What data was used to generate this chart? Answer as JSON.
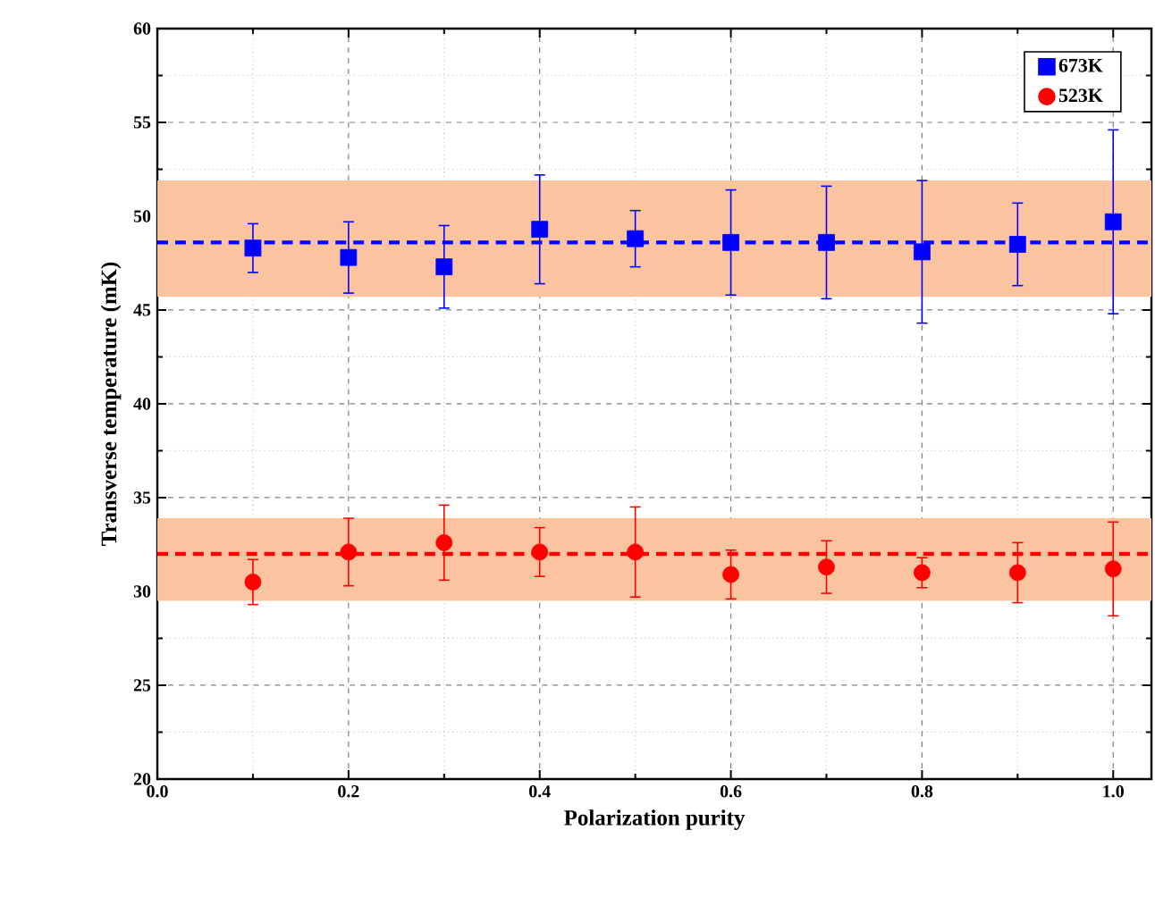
{
  "chart_data": {
    "type": "scatter",
    "xlabel": "Polarization purity",
    "ylabel": "Transverse temperature (mK)",
    "xlim": [
      0,
      1.04
    ],
    "xticks": [
      {
        "value": 0,
        "label": "0.0"
      },
      0.2,
      0.4,
      0.6,
      0.8,
      {
        "value": 1,
        "label": "1.0"
      }
    ],
    "ylim": [
      20,
      60
    ],
    "yticks": [
      20,
      25,
      30,
      35,
      40,
      45,
      50,
      55,
      60
    ],
    "x": [
      0.1,
      0.2,
      0.3,
      0.4,
      0.5,
      0.6,
      0.7,
      0.8,
      0.9,
      1.0
    ],
    "series": [
      {
        "name": "673K",
        "color": "#0000ff",
        "marker": "square",
        "values": [
          48.3,
          47.8,
          47.3,
          49.3,
          48.8,
          48.6,
          48.6,
          48.1,
          48.5,
          49.7
        ],
        "errors": [
          1.3,
          1.9,
          2.2,
          2.9,
          1.5,
          2.8,
          3.0,
          3.8,
          2.2,
          4.9
        ]
      },
      {
        "name": "523K",
        "color": "#ff0000",
        "marker": "circle",
        "values": [
          30.5,
          32.1,
          32.6,
          32.1,
          32.1,
          30.9,
          31.3,
          31.0,
          31.0,
          31.2
        ],
        "errors": [
          1.2,
          1.8,
          2.0,
          1.3,
          2.4,
          1.3,
          1.4,
          0.8,
          1.6,
          2.5
        ]
      }
    ],
    "ref_lines": [
      {
        "axis": "y",
        "value": 48.6,
        "color": "#0000ff",
        "line_style": "dashed"
      },
      {
        "axis": "y",
        "value": 32.0,
        "color": "#ff0000",
        "line_style": "dashed"
      }
    ],
    "bands": [
      {
        "axis": "y",
        "from": 45.7,
        "to": 51.9,
        "color": "#fbc4a0"
      },
      {
        "axis": "y",
        "from": 29.5,
        "to": 33.9,
        "color": "#fbc4a0"
      }
    ],
    "grid": true,
    "legend": "top right"
  }
}
